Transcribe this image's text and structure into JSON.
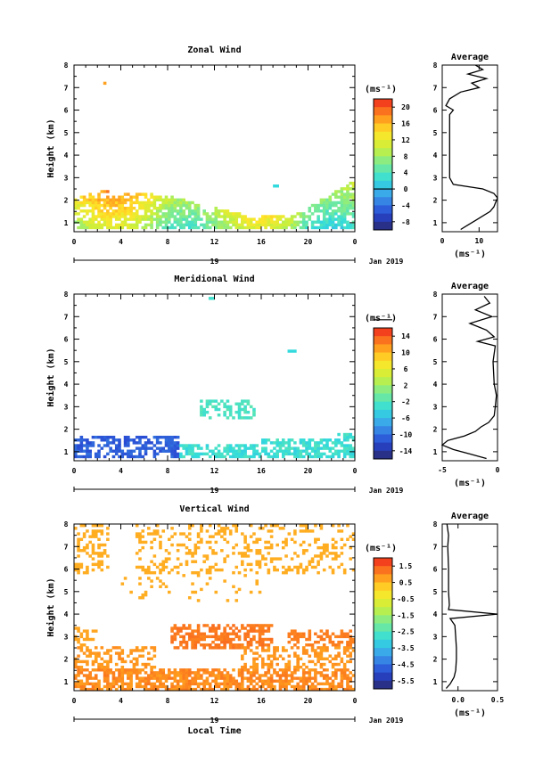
{
  "figure": {
    "date_label": "Jan 2019",
    "day_label": "19",
    "xlabel_bottom": "Local Time",
    "unit_label": "(ms⁻¹)",
    "average_title": "Average"
  },
  "chart_data": [
    {
      "type": "heatmap",
      "title": "Zonal Wind",
      "ylabel": "Height (km)",
      "xlabel": "",
      "x_ticks": [
        "0",
        "4",
        "8",
        "12",
        "16",
        "20",
        "0"
      ],
      "xlim": [
        0,
        24
      ],
      "ylim": [
        0.6,
        8
      ],
      "y_ticks": [
        1,
        2,
        3,
        4,
        5,
        6,
        7,
        8
      ],
      "colorbar": {
        "ticks": [
          20,
          16,
          12,
          8,
          4,
          0,
          -4,
          -8
        ],
        "range": [
          -10,
          22
        ],
        "contour_level": 0
      },
      "average_profile": {
        "xlim": [
          0,
          15
        ],
        "x_ticks": [
          0,
          10
        ],
        "xlabel": "(ms⁻¹)",
        "height": [
          0.7,
          0.9,
          1.1,
          1.3,
          1.5,
          1.7,
          1.9,
          2.1,
          2.3,
          2.5,
          2.7,
          3.0,
          4.0,
          5.0,
          5.8,
          6.0,
          6.2,
          6.5,
          6.8,
          7.0,
          7.2,
          7.4,
          7.6,
          7.8,
          8.0
        ],
        "value": [
          5,
          7,
          9,
          11,
          13,
          14,
          14.5,
          15,
          14,
          11,
          3,
          2,
          2,
          2,
          2,
          3,
          1,
          2,
          5,
          10,
          8,
          12,
          7,
          11,
          9
        ]
      }
    },
    {
      "type": "heatmap",
      "title": "Meridional Wind",
      "ylabel": "Height (km)",
      "xlabel": "",
      "x_ticks": [
        "0",
        "4",
        "8",
        "12",
        "16",
        "20",
        "0"
      ],
      "xlim": [
        0,
        24
      ],
      "ylim": [
        0.6,
        8
      ],
      "y_ticks": [
        1,
        2,
        3,
        4,
        5,
        6,
        7,
        8
      ],
      "colorbar": {
        "ticks": [
          14,
          10,
          6,
          2,
          -2,
          -6,
          -10,
          -14
        ],
        "range": [
          -16,
          16
        ],
        "contour_level": 0
      },
      "average_profile": {
        "xlim": [
          -5,
          0
        ],
        "x_ticks": [
          -5,
          0
        ],
        "xlabel": "(ms⁻¹)",
        "height": [
          0.7,
          0.9,
          1.1,
          1.3,
          1.5,
          1.7,
          1.9,
          2.1,
          2.3,
          2.6,
          3.0,
          3.5,
          4.0,
          5.0,
          5.7,
          5.9,
          6.1,
          6.4,
          6.7,
          7.0,
          7.3,
          7.6,
          7.9
        ],
        "value": [
          -1,
          -2.5,
          -4,
          -5,
          -4.5,
          -3,
          -2,
          -1.5,
          -0.8,
          -0.3,
          -0.2,
          -0.1,
          -0.3,
          -0.4,
          -0.2,
          -1.8,
          -0.3,
          -1,
          -2.5,
          -0.5,
          -2,
          -0.7,
          -1.2
        ]
      }
    },
    {
      "type": "heatmap",
      "title": "Vertical Wind",
      "ylabel": "Height (km)",
      "xlabel": "Local Time",
      "x_ticks": [
        "0",
        "4",
        "8",
        "12",
        "16",
        "20",
        "0"
      ],
      "xlim": [
        0,
        24
      ],
      "ylim": [
        0.6,
        8
      ],
      "y_ticks": [
        1,
        2,
        3,
        4,
        5,
        6,
        7,
        8
      ],
      "colorbar": {
        "ticks": [
          1.5,
          0.5,
          -0.5,
          -1.5,
          -2.5,
          -3.5,
          -4.5,
          -5.5
        ],
        "range": [
          -6,
          2
        ]
      },
      "average_profile": {
        "xlim": [
          -0.2,
          0.5
        ],
        "x_ticks": [
          0.0,
          0.5
        ],
        "xlabel": "(ms⁻¹)",
        "height": [
          0.7,
          0.9,
          1.2,
          1.5,
          2.0,
          2.5,
          3.0,
          3.5,
          3.8,
          4.0,
          4.2,
          4.4,
          5.0,
          6.0,
          7.0,
          7.5,
          8.0
        ],
        "value": [
          -0.15,
          -0.1,
          -0.05,
          -0.03,
          -0.02,
          -0.02,
          -0.03,
          -0.04,
          -0.1,
          0.5,
          -0.12,
          -0.11,
          -0.12,
          -0.12,
          -0.13,
          -0.12,
          -0.14
        ]
      }
    }
  ]
}
